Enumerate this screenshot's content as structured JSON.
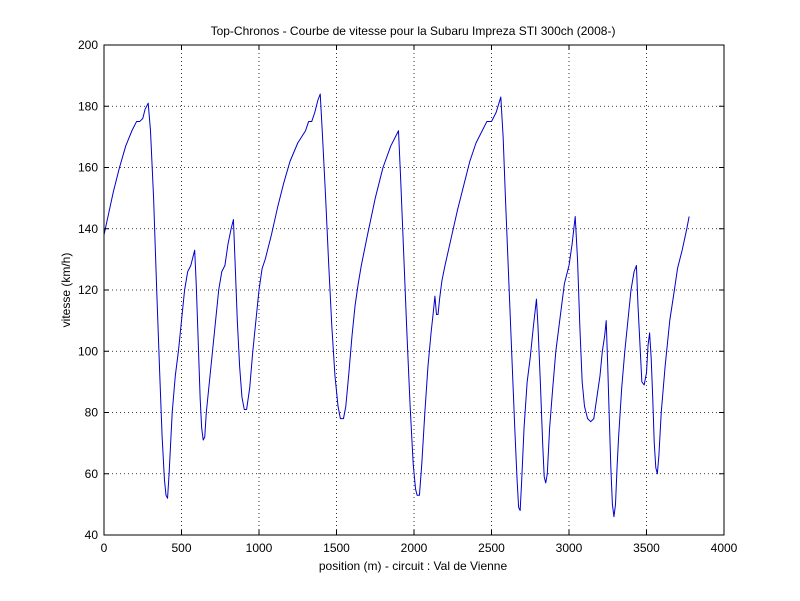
{
  "chart_data": {
    "type": "line",
    "title": "Top-Chronos - Courbe de vitesse pour la Subaru Impreza STI 300ch (2008-)",
    "xlabel": "position (m) - circuit : Val de Vienne",
    "ylabel": "vitesse (km/h)",
    "xlim": [
      0,
      4000
    ],
    "ylim": [
      40,
      200
    ],
    "x_ticks": [
      0,
      500,
      1000,
      1500,
      2000,
      2500,
      3000,
      3500,
      4000
    ],
    "y_ticks": [
      40,
      60,
      80,
      100,
      120,
      140,
      160,
      180,
      200
    ],
    "grid": true,
    "line_color": "#0000cc",
    "series": [
      {
        "points": [
          [
            0,
            138
          ],
          [
            30,
            145
          ],
          [
            60,
            152
          ],
          [
            100,
            160
          ],
          [
            140,
            167
          ],
          [
            180,
            172
          ],
          [
            210,
            175
          ],
          [
            230,
            175
          ],
          [
            250,
            176
          ],
          [
            265,
            179
          ],
          [
            285,
            181
          ],
          [
            300,
            172
          ],
          [
            320,
            150
          ],
          [
            340,
            120
          ],
          [
            360,
            92
          ],
          [
            375,
            72
          ],
          [
            390,
            58
          ],
          [
            400,
            53
          ],
          [
            410,
            52
          ],
          [
            420,
            60
          ],
          [
            440,
            80
          ],
          [
            460,
            92
          ],
          [
            480,
            100
          ],
          [
            500,
            110
          ],
          [
            520,
            120
          ],
          [
            540,
            126
          ],
          [
            560,
            128
          ],
          [
            575,
            131
          ],
          [
            585,
            133
          ],
          [
            595,
            122
          ],
          [
            610,
            100
          ],
          [
            620,
            85
          ],
          [
            630,
            75
          ],
          [
            640,
            71
          ],
          [
            650,
            72
          ],
          [
            660,
            80
          ],
          [
            680,
            90
          ],
          [
            700,
            100
          ],
          [
            720,
            110
          ],
          [
            740,
            120
          ],
          [
            760,
            126
          ],
          [
            780,
            128
          ],
          [
            800,
            135
          ],
          [
            820,
            140
          ],
          [
            835,
            143
          ],
          [
            845,
            130
          ],
          [
            860,
            110
          ],
          [
            875,
            95
          ],
          [
            890,
            85
          ],
          [
            905,
            81
          ],
          [
            920,
            81
          ],
          [
            940,
            88
          ],
          [
            960,
            100
          ],
          [
            980,
            110
          ],
          [
            1000,
            120
          ],
          [
            1020,
            127
          ],
          [
            1040,
            130
          ],
          [
            1080,
            138
          ],
          [
            1120,
            147
          ],
          [
            1160,
            155
          ],
          [
            1200,
            162
          ],
          [
            1250,
            168
          ],
          [
            1300,
            172
          ],
          [
            1320,
            175
          ],
          [
            1340,
            175
          ],
          [
            1360,
            178
          ],
          [
            1380,
            182
          ],
          [
            1395,
            184
          ],
          [
            1410,
            170
          ],
          [
            1430,
            150
          ],
          [
            1450,
            128
          ],
          [
            1470,
            108
          ],
          [
            1490,
            92
          ],
          [
            1510,
            82
          ],
          [
            1525,
            78
          ],
          [
            1545,
            78
          ],
          [
            1560,
            82
          ],
          [
            1580,
            93
          ],
          [
            1600,
            105
          ],
          [
            1620,
            115
          ],
          [
            1640,
            122
          ],
          [
            1660,
            128
          ],
          [
            1700,
            138
          ],
          [
            1750,
            150
          ],
          [
            1800,
            160
          ],
          [
            1850,
            167
          ],
          [
            1880,
            170
          ],
          [
            1900,
            172
          ],
          [
            1915,
            155
          ],
          [
            1935,
            130
          ],
          [
            1955,
            105
          ],
          [
            1975,
            82
          ],
          [
            1995,
            63
          ],
          [
            2010,
            55
          ],
          [
            2020,
            53
          ],
          [
            2035,
            53
          ],
          [
            2050,
            63
          ],
          [
            2070,
            80
          ],
          [
            2090,
            95
          ],
          [
            2110,
            106
          ],
          [
            2125,
            113
          ],
          [
            2135,
            118
          ],
          [
            2145,
            112
          ],
          [
            2155,
            112
          ],
          [
            2165,
            117
          ],
          [
            2180,
            123
          ],
          [
            2200,
            128
          ],
          [
            2240,
            137
          ],
          [
            2280,
            146
          ],
          [
            2320,
            154
          ],
          [
            2360,
            162
          ],
          [
            2400,
            168
          ],
          [
            2440,
            172
          ],
          [
            2470,
            175
          ],
          [
            2500,
            175
          ],
          [
            2530,
            178
          ],
          [
            2560,
            183
          ],
          [
            2575,
            170
          ],
          [
            2590,
            150
          ],
          [
            2610,
            125
          ],
          [
            2630,
            100
          ],
          [
            2650,
            75
          ],
          [
            2665,
            58
          ],
          [
            2675,
            49
          ],
          [
            2685,
            48
          ],
          [
            2695,
            58
          ],
          [
            2710,
            75
          ],
          [
            2730,
            90
          ],
          [
            2750,
            98
          ],
          [
            2770,
            108
          ],
          [
            2790,
            117
          ],
          [
            2800,
            108
          ],
          [
            2815,
            90
          ],
          [
            2830,
            70
          ],
          [
            2840,
            59
          ],
          [
            2850,
            57
          ],
          [
            2860,
            60
          ],
          [
            2875,
            75
          ],
          [
            2895,
            88
          ],
          [
            2915,
            100
          ],
          [
            2940,
            110
          ],
          [
            2970,
            122
          ],
          [
            3000,
            128
          ],
          [
            3020,
            135
          ],
          [
            3040,
            144
          ],
          [
            3055,
            130
          ],
          [
            3070,
            108
          ],
          [
            3085,
            90
          ],
          [
            3100,
            82
          ],
          [
            3120,
            78
          ],
          [
            3140,
            77
          ],
          [
            3160,
            78
          ],
          [
            3180,
            85
          ],
          [
            3200,
            92
          ],
          [
            3215,
            100
          ],
          [
            3230,
            105
          ],
          [
            3240,
            110
          ],
          [
            3250,
            95
          ],
          [
            3260,
            78
          ],
          [
            3270,
            62
          ],
          [
            3280,
            50
          ],
          [
            3290,
            46
          ],
          [
            3300,
            50
          ],
          [
            3310,
            62
          ],
          [
            3320,
            72
          ],
          [
            3340,
            88
          ],
          [
            3360,
            100
          ],
          [
            3380,
            110
          ],
          [
            3400,
            120
          ],
          [
            3420,
            126
          ],
          [
            3435,
            128
          ],
          [
            3445,
            115
          ],
          [
            3460,
            100
          ],
          [
            3470,
            90
          ],
          [
            3485,
            89
          ],
          [
            3500,
            93
          ],
          [
            3510,
            102
          ],
          [
            3520,
            106
          ],
          [
            3530,
            98
          ],
          [
            3540,
            85
          ],
          [
            3550,
            70
          ],
          [
            3560,
            62
          ],
          [
            3570,
            60
          ],
          [
            3580,
            66
          ],
          [
            3595,
            80
          ],
          [
            3620,
            95
          ],
          [
            3650,
            110
          ],
          [
            3680,
            120
          ],
          [
            3700,
            127
          ],
          [
            3730,
            133
          ],
          [
            3760,
            140
          ],
          [
            3775,
            144
          ]
        ]
      }
    ]
  }
}
